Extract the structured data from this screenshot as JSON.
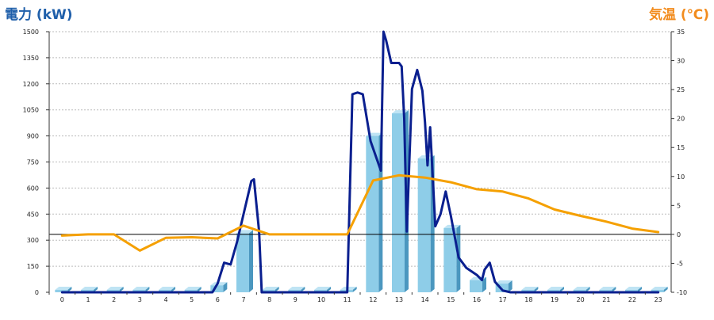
{
  "chart_data": {
    "type": "bar",
    "ylabel_left": "電力 (kW)",
    "ylabel_right": "気温 (℃)",
    "categories": [
      "0",
      "1",
      "2",
      "3",
      "4",
      "5",
      "6",
      "7",
      "8",
      "9",
      "10",
      "11",
      "12",
      "13",
      "14",
      "15",
      "16",
      "17",
      "18",
      "19",
      "20",
      "21",
      "22",
      "23"
    ],
    "ylim_left": [
      0,
      1500
    ],
    "yticks_left": [
      "0",
      "150",
      "300",
      "450",
      "600",
      "750",
      "900",
      "1050",
      "1200",
      "1350",
      "1500"
    ],
    "ylim_right": [
      -10,
      35
    ],
    "yticks_right": [
      "-10",
      "-5",
      "0",
      "5",
      "10",
      "15",
      "20",
      "25",
      "30",
      "35"
    ],
    "grid": true,
    "series": [
      {
        "kind": "bar",
        "axis": "left",
        "values": [
          0,
          0,
          0,
          0,
          0,
          0,
          40,
          340,
          0,
          0,
          0,
          0,
          900,
          1030,
          770,
          370,
          70,
          50,
          0,
          0,
          0,
          0,
          0,
          0
        ]
      },
      {
        "kind": "line",
        "axis": "left",
        "x": [
          0,
          1,
          2,
          3,
          4,
          5,
          5.5,
          5.8,
          6.0,
          6.25,
          6.5,
          6.75,
          7.0,
          7.3,
          7.4,
          7.6,
          7.7,
          8,
          9,
          10,
          10.9,
          11.0,
          11.2,
          11.4,
          11.6,
          11.9,
          12.3,
          12.4,
          12.5,
          12.7,
          13.0,
          13.1,
          13.2,
          13.3,
          13.5,
          13.7,
          13.9,
          14.0,
          14.1,
          14.2,
          14.4,
          14.6,
          14.8,
          15.0,
          15.3,
          15.6,
          16.0,
          16.2,
          16.3,
          16.5,
          16.7,
          17.0,
          17.3,
          18,
          19,
          20,
          21,
          22,
          23
        ],
        "values": [
          0,
          0,
          0,
          0,
          0,
          0,
          0,
          0,
          50,
          170,
          160,
          290,
          450,
          640,
          650,
          350,
          0,
          0,
          0,
          0,
          0,
          0,
          1140,
          1150,
          1140,
          870,
          700,
          1500,
          1450,
          1320,
          1320,
          1300,
          1000,
          350,
          1170,
          1280,
          1160,
          980,
          730,
          950,
          380,
          450,
          580,
          440,
          200,
          140,
          100,
          70,
          130,
          170,
          60,
          10,
          0,
          0,
          0,
          0,
          0,
          0,
          0
        ]
      },
      {
        "kind": "line",
        "axis": "right",
        "values": [
          -0.2,
          0.0,
          0.0,
          -2.8,
          -0.6,
          -0.5,
          -0.7,
          1.5,
          0.0,
          0.0,
          0.0,
          0.0,
          9.3,
          10.2,
          9.8,
          9.0,
          7.8,
          7.4,
          6.2,
          4.3,
          3.2,
          2.2,
          1.0,
          0.4
        ]
      }
    ]
  },
  "colors": {
    "bar_front": "#8ecde8",
    "bar_side": "#4b97bf",
    "bar_top": "#bfe4f4",
    "power_line": "#0a1f8f",
    "temp_line": "#f5a000",
    "grid": "#bbbbbb",
    "zero_line": "#000000",
    "title_left": "#1f5faa",
    "title_right": "#f28c1e"
  }
}
